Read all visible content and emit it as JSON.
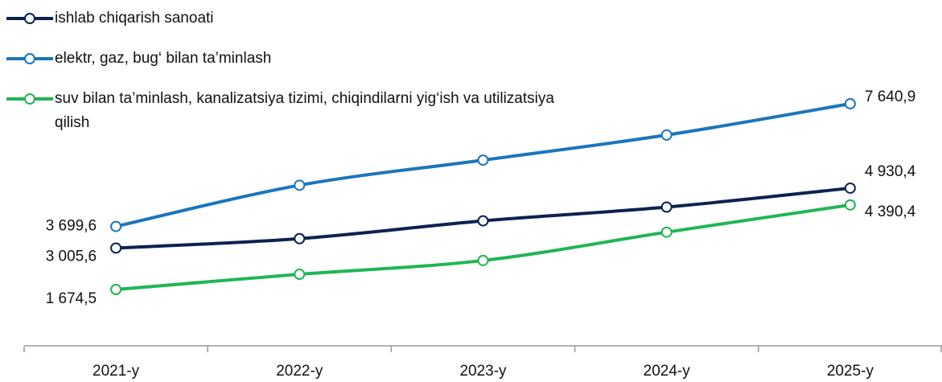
{
  "chart_data": {
    "type": "line",
    "categories": [
      "2021-y",
      "2022-y",
      "2023-y",
      "2024-y",
      "2025-y"
    ],
    "series": [
      {
        "name": "ishlab chiqarish sanoati",
        "color": "#0d2252",
        "values": [
          3005.6,
          3308,
          3880,
          4322,
          4930.4
        ],
        "value_labels": [
          "3 005,6",
          null,
          null,
          null,
          "4 930,4"
        ]
      },
      {
        "name": "elektr, gaz, bug‘ bilan ta’minlash",
        "color": "#1b75bc",
        "values": [
          3699.6,
          5024,
          5830,
          6636,
          7640.9
        ],
        "value_labels": [
          "3 699,6",
          null,
          null,
          null,
          "7 640,9"
        ]
      },
      {
        "name": "suv bilan ta’minlash, kanalizatsiya tizimi, chiqindilarni yig‘ish va utilizatsiya qilish",
        "color": "#1fb655",
        "values": [
          1674.5,
          2164,
          2606,
          3516,
          4390.4
        ],
        "value_labels": [
          "1 674,5",
          null,
          null,
          null,
          "4 390,4"
        ]
      }
    ]
  }
}
